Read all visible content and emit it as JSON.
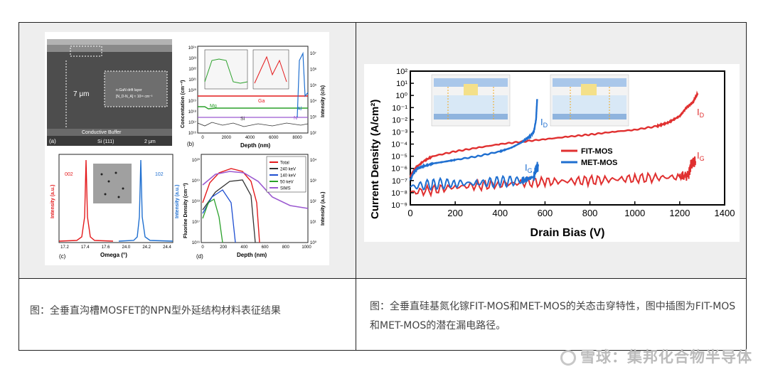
{
  "captions": {
    "left": "图：全垂直沟槽MOSFET的NPN型外延结构材料表征结果",
    "right": "图：全垂直硅基氮化镓FIT-MOS和MET-MOS的关态击穿特性，图中插图为FIT-MOS和MET-MOS的潜在漏电路径。"
  },
  "watermark": "雪球：集邦化合物半导体",
  "left_figure": {
    "panel_a": {
      "label": "(a)",
      "thickness": "7 μm",
      "layer1": "Conductive Buffer",
      "layer2": "Si (111)",
      "scalebar": "2 μm",
      "inset_text": [
        "n-GaN drift layer",
        "[N_D-N_A] ≈ 10¹⁶ cm⁻³"
      ]
    },
    "panel_b": {
      "label": "(b)",
      "xlabel": "Depth (nm)",
      "ylabel_left": "Concentation (cm⁻³)",
      "ylabel_right": "Intensity (c/s)",
      "xticks": [
        "0",
        "2000",
        "4000",
        "6000",
        "8000"
      ],
      "yticks_left": [
        "10¹⁶",
        "10¹⁷",
        "10¹⁸",
        "10¹⁹",
        "10²⁰",
        "10²¹",
        "10²²",
        "10²³",
        "10²⁴"
      ],
      "yticks_right": [
        "10²",
        "10³",
        "10⁴",
        "10⁵",
        "10⁶",
        "10⁷"
      ],
      "labels": {
        "ga": "Ga",
        "al": "Al",
        "mg": "Mg",
        "si": "Si",
        "n": "N"
      }
    },
    "panel_c": {
      "label": "(c)",
      "xlabel": "Omega (°)",
      "ylabel_left": "Intensity (a.u.)",
      "ylabel_right": "Intensity (a.u.)",
      "xticks": [
        "17.2",
        "17.4",
        "17.6",
        "24.0",
        "24.2",
        "24.4"
      ],
      "peak_left": "002",
      "peak_right": "102"
    },
    "panel_d": {
      "label": "(d)",
      "xlabel": "Depth (nm)",
      "ylabel_left": "Fluorine Density (cm⁻³)",
      "ylabel_right": "Intensity (a.u.)",
      "xticks": [
        "0",
        "200",
        "400",
        "600",
        "800",
        "1000"
      ],
      "yticks_left": [
        "10¹⁶",
        "10¹⁷",
        "10¹⁸",
        "10¹⁹",
        "10²⁰"
      ],
      "yticks_right": [
        "10⁰",
        "10¹",
        "10²",
        "10³",
        "10⁴"
      ],
      "legend": [
        "Total",
        "240 keV",
        "140 keV",
        "50 keV",
        "SIMS"
      ],
      "legend_colors": [
        "#e41a1c",
        "#333333",
        "#1f4fd1",
        "#2aa02a",
        "#9b59d0"
      ]
    }
  },
  "chart_data": {
    "type": "line",
    "title": "",
    "xlabel": "Drain Bias (V)",
    "ylabel": "Current Density (A/cm²)",
    "xlim": [
      0,
      1400
    ],
    "ylim": [
      1e-09,
      100
    ],
    "yscale": "log",
    "xticks": [
      "0",
      "200",
      "400",
      "600",
      "800",
      "1000",
      "1200",
      "1400"
    ],
    "yticks": [
      "10⁻⁹",
      "10⁻⁸",
      "10⁻⁷",
      "10⁻⁶",
      "10⁻⁵",
      "10⁻⁴",
      "10⁻³",
      "10⁻²",
      "10⁻¹",
      "10⁰",
      "10¹",
      "10²"
    ],
    "legend": "top-center",
    "series": [
      {
        "name": "FIT-MOS",
        "color": "#e03030",
        "id": {
          "x": [
            0,
            20,
            60,
            100,
            200,
            300,
            400,
            500,
            600,
            700,
            800,
            900,
            1000,
            1100,
            1150,
            1200,
            1230,
            1260,
            1280
          ],
          "y": [
            2e-07,
            1e-06,
            4e-06,
            1e-05,
            2.5e-05,
            5e-05,
            0.0001,
            0.00016,
            0.00025,
            0.0004,
            0.0006,
            0.001,
            0.0015,
            0.003,
            0.006,
            0.02,
            0.1,
            0.3,
            1.5
          ]
        },
        "ig": {
          "x": [
            0,
            200,
            400,
            600,
            800,
            1000,
            1200,
            1240,
            1250,
            1260,
            1270
          ],
          "y": [
            1e-08,
            3e-08,
            5e-08,
            8e-08,
            1e-07,
            1.5e-07,
            2e-07,
            3e-07,
            2e-06,
            3e-06,
            4e-06
          ]
        }
      },
      {
        "name": "MET-MOS",
        "color": "#1f6fd0",
        "id": {
          "x": [
            0,
            10,
            30,
            60,
            100,
            150,
            200,
            300,
            400,
            450,
            500,
            530,
            550,
            560,
            565
          ],
          "y": [
            1e-07,
            3e-07,
            1e-06,
            1.5e-06,
            2.5e-06,
            3.5e-06,
            5e-06,
            1e-05,
            2.5e-05,
            5e-05,
            0.00015,
            0.0004,
            0.001,
            0.01,
            0.5
          ]
        },
        "ig": {
          "x": [
            0,
            100,
            200,
            300,
            400,
            500,
            550,
            560,
            570
          ],
          "y": [
            3e-08,
            5e-08,
            6e-08,
            6e-08,
            8e-08,
            1e-07,
            2e-07,
            1e-06,
            1.5e-06
          ]
        }
      }
    ],
    "annotations": [
      "I_D",
      "I_G",
      "I_D",
      "I_G"
    ]
  }
}
